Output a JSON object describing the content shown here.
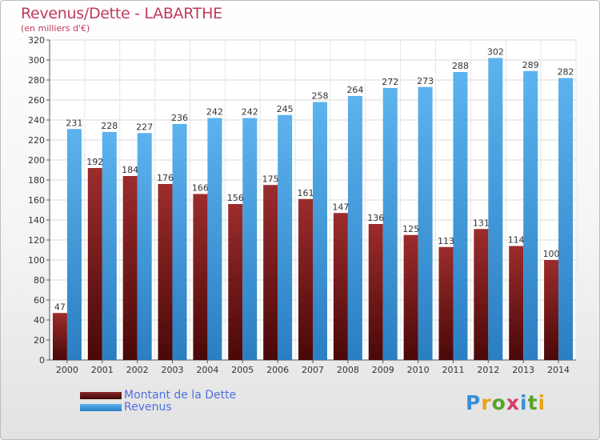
{
  "title": "Revenus/Dette - LABARTHE",
  "subtitle": "(en milliers d'€)",
  "brand": "Proxiti",
  "colors": {
    "title": "#c13a5b",
    "dette": "#7a1e1e",
    "revenus": "#3d99dc",
    "legend_text": "#4f6fe0"
  },
  "chart_data": {
    "type": "bar",
    "categories": [
      "2000",
      "2001",
      "2002",
      "2003",
      "2004",
      "2005",
      "2006",
      "2007",
      "2008",
      "2009",
      "2010",
      "2011",
      "2012",
      "2013",
      "2014"
    ],
    "series": [
      {
        "name": "Montant de la Dette",
        "values": [
          47,
          192,
          184,
          176,
          166,
          156,
          175,
          161,
          147,
          136,
          125,
          113,
          131,
          114,
          100
        ]
      },
      {
        "name": "Revenus",
        "values": [
          231,
          228,
          227,
          236,
          242,
          242,
          245,
          258,
          264,
          272,
          273,
          288,
          302,
          289,
          282
        ]
      }
    ],
    "ylim": [
      0,
      320
    ],
    "ytick_step": 20,
    "grid": true,
    "legend_position": "bottom-left"
  }
}
